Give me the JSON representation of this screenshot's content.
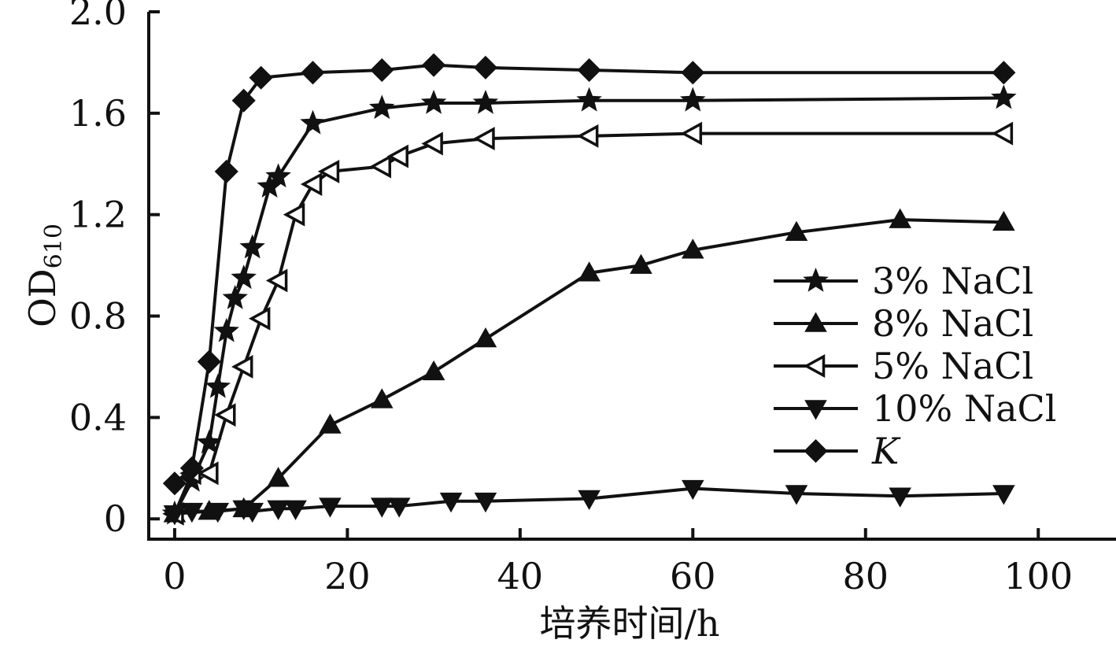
{
  "chart_data": {
    "type": "line",
    "xlabel": "培养时间/h",
    "ylabel": "OD",
    "ylabel_subscript": "610",
    "xlim": [
      -3,
      109
    ],
    "ylim": [
      -0.08,
      2.0
    ],
    "xticks": [
      0,
      20,
      40,
      60,
      80,
      100
    ],
    "xtick_labels": [
      "0",
      "20",
      "40",
      "60",
      "80",
      "100"
    ],
    "yticks": [
      0,
      0.4,
      0.8,
      1.2,
      1.6,
      2.0
    ],
    "ytick_labels": [
      "0",
      "0.4",
      "0.8",
      "1.2",
      "1.6",
      "2.0"
    ],
    "legend_position": "right",
    "grid": false,
    "series": [
      {
        "name": "3% NaCl",
        "name_italic": false,
        "marker": "star",
        "x": [
          0,
          2,
          4,
          5,
          6,
          7,
          8,
          9,
          11,
          12,
          16,
          24,
          30,
          36,
          48,
          60,
          96
        ],
        "y": [
          0.02,
          0.15,
          0.3,
          0.52,
          0.74,
          0.87,
          0.95,
          1.07,
          1.31,
          1.35,
          1.56,
          1.62,
          1.64,
          1.64,
          1.65,
          1.65,
          1.66
        ]
      },
      {
        "name": "8% NaCl",
        "name_italic": false,
        "marker": "triangle-up",
        "x": [
          0,
          4,
          8,
          12,
          18,
          24,
          30,
          36,
          48,
          54,
          60,
          72,
          84,
          96
        ],
        "y": [
          0.02,
          0.03,
          0.04,
          0.16,
          0.37,
          0.47,
          0.58,
          0.71,
          0.97,
          1.0,
          1.06,
          1.13,
          1.18,
          1.17
        ]
      },
      {
        "name": "5% NaCl",
        "name_italic": false,
        "marker": "triangle-left-open",
        "x": [
          0,
          2,
          4,
          6,
          8,
          10,
          12,
          14,
          16,
          18,
          24,
          26,
          30,
          36,
          48,
          60,
          96
        ],
        "y": [
          0.02,
          0.18,
          0.18,
          0.41,
          0.6,
          0.79,
          0.94,
          1.2,
          1.32,
          1.37,
          1.39,
          1.43,
          1.48,
          1.5,
          1.51,
          1.52,
          1.52
        ]
      },
      {
        "name": "10% NaCl",
        "name_italic": false,
        "marker": "triangle-down",
        "x": [
          0,
          2,
          5,
          8,
          9,
          12,
          14,
          18,
          24,
          26,
          32,
          36,
          48,
          60,
          72,
          84,
          96
        ],
        "y": [
          0.02,
          0.03,
          0.03,
          0.04,
          0.03,
          0.04,
          0.04,
          0.05,
          0.05,
          0.05,
          0.07,
          0.07,
          0.08,
          0.12,
          0.1,
          0.09,
          0.1
        ]
      },
      {
        "name": "K",
        "name_italic": true,
        "marker": "diamond",
        "x": [
          0,
          2,
          4,
          6,
          8,
          10,
          16,
          24,
          30,
          36,
          48,
          60,
          96
        ],
        "y": [
          0.14,
          0.2,
          0.62,
          1.37,
          1.65,
          1.74,
          1.76,
          1.77,
          1.79,
          1.78,
          1.77,
          1.76,
          1.76
        ]
      }
    ],
    "colors": {
      "ink": "#111111",
      "background": "#ffffff"
    }
  }
}
